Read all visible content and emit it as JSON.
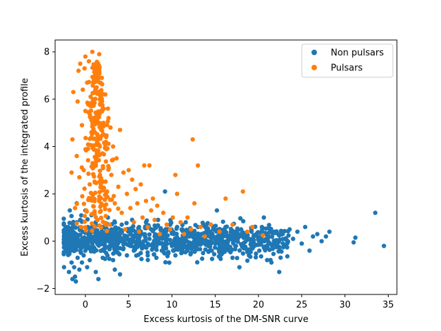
{
  "chart_data": {
    "type": "scatter",
    "title": "",
    "xlabel": "Excess kurtosis of the DM-SNR curve",
    "ylabel": "Excess kurtosis of the integrated profile",
    "xlim": [
      -3.5,
      36.0
    ],
    "ylim": [
      -2.25,
      8.5
    ],
    "xticks": [
      0,
      5,
      10,
      15,
      20,
      25,
      30,
      35
    ],
    "yticks": [
      -2,
      0,
      2,
      4,
      6,
      8
    ],
    "grid": false,
    "legend_position": "upper right",
    "series": [
      {
        "name": "Non pulsars",
        "color": "#1f77b4",
        "points": [
          [
            -2.5,
            0.7
          ],
          [
            -2.4,
            -0.1
          ],
          [
            -2.2,
            0.2
          ],
          [
            -2.0,
            -0.4
          ],
          [
            -2.0,
            0.6
          ],
          [
            -1.9,
            -1.3
          ],
          [
            -1.8,
            1.3
          ],
          [
            -1.6,
            -0.9
          ],
          [
            -1.5,
            -1.6
          ],
          [
            -1.4,
            0.3
          ],
          [
            -1.3,
            -1.1
          ],
          [
            -1.2,
            -1.5
          ],
          [
            -1.1,
            -1.7
          ],
          [
            -1.0,
            1.6
          ],
          [
            -1.0,
            0.8
          ],
          [
            -0.9,
            -0.7
          ],
          [
            -0.8,
            0.0
          ],
          [
            -0.7,
            -1.2
          ],
          [
            -0.6,
            0.9
          ],
          [
            -0.5,
            -0.3
          ],
          [
            -0.4,
            -0.9
          ],
          [
            -0.3,
            0.4
          ],
          [
            -0.2,
            -0.6
          ],
          [
            0.0,
            1.3
          ],
          [
            0.0,
            -0.2
          ],
          [
            0.2,
            -1.1
          ],
          [
            0.3,
            0.5
          ],
          [
            0.5,
            -0.8
          ],
          [
            0.7,
            1.1
          ],
          [
            0.8,
            -0.4
          ],
          [
            1.0,
            0.2
          ],
          [
            1.2,
            -1.3
          ],
          [
            1.4,
            0.9
          ],
          [
            1.5,
            -1.6
          ],
          [
            1.7,
            -0.1
          ],
          [
            1.9,
            0.6
          ],
          [
            2.0,
            -0.7
          ],
          [
            2.2,
            0.3
          ],
          [
            2.4,
            -0.5
          ],
          [
            2.6,
            1.0
          ],
          [
            2.8,
            -0.2
          ],
          [
            3.0,
            0.5
          ],
          [
            3.2,
            -0.8
          ],
          [
            3.4,
            -1.2
          ],
          [
            3.6,
            0.2
          ],
          [
            3.8,
            -0.5
          ],
          [
            4.0,
            -1.4
          ],
          [
            4.2,
            0.7
          ],
          [
            4.4,
            -0.3
          ],
          [
            4.6,
            0.1
          ],
          [
            4.8,
            -0.6
          ],
          [
            5.0,
            0.4
          ],
          [
            5.2,
            -0.2
          ],
          [
            5.4,
            0.9
          ],
          [
            5.6,
            -0.4
          ],
          [
            5.8,
            0.2
          ],
          [
            6.0,
            -0.1
          ],
          [
            6.2,
            0.6
          ],
          [
            6.4,
            -0.5
          ],
          [
            6.6,
            0.3
          ],
          [
            6.8,
            -0.2
          ],
          [
            7.0,
            0.8
          ],
          [
            7.2,
            -0.6
          ],
          [
            7.4,
            0.1
          ],
          [
            7.6,
            0.5
          ],
          [
            7.8,
            -0.3
          ],
          [
            8.0,
            0.2
          ],
          [
            8.2,
            -0.7
          ],
          [
            8.4,
            0.9
          ],
          [
            8.6,
            -0.1
          ],
          [
            8.8,
            0.4
          ],
          [
            9.0,
            -0.4
          ],
          [
            9.2,
            2.1
          ],
          [
            9.4,
            0.1
          ],
          [
            9.6,
            -0.5
          ],
          [
            9.8,
            0.7
          ],
          [
            10.0,
            -0.2
          ],
          [
            10.2,
            0.3
          ],
          [
            10.4,
            -0.6
          ],
          [
            10.6,
            0.6
          ],
          [
            10.8,
            0.0
          ],
          [
            11.0,
            -0.3
          ],
          [
            11.2,
            0.5
          ],
          [
            11.4,
            -0.1
          ],
          [
            11.6,
            0.8
          ],
          [
            11.8,
            -0.4
          ],
          [
            12.0,
            0.2
          ],
          [
            12.2,
            -0.5
          ],
          [
            12.4,
            0.4
          ],
          [
            12.6,
            0.0
          ],
          [
            12.8,
            -0.3
          ],
          [
            13.0,
            0.6
          ],
          [
            13.2,
            -0.1
          ],
          [
            13.4,
            0.3
          ],
          [
            13.6,
            -0.5
          ],
          [
            13.8,
            0.1
          ],
          [
            14.0,
            0.7
          ],
          [
            14.2,
            -0.2
          ],
          [
            14.4,
            0.4
          ],
          [
            14.6,
            -0.4
          ],
          [
            14.8,
            0.2
          ],
          [
            15.0,
            -0.1
          ],
          [
            15.2,
            1.3
          ],
          [
            15.4,
            0.5
          ],
          [
            15.6,
            -0.6
          ],
          [
            15.8,
            0.3
          ],
          [
            16.0,
            -0.2
          ],
          [
            16.2,
            0.6
          ],
          [
            16.4,
            0.0
          ],
          [
            16.6,
            -0.4
          ],
          [
            16.8,
            0.2
          ],
          [
            17.0,
            -0.7
          ],
          [
            17.2,
            0.4
          ],
          [
            17.4,
            -0.2
          ],
          [
            17.6,
            0.1
          ],
          [
            17.8,
            -1.1
          ],
          [
            18.0,
            0.5
          ],
          [
            18.3,
            -0.3
          ],
          [
            18.6,
            0.2
          ],
          [
            18.9,
            -0.6
          ],
          [
            19.2,
            0.4
          ],
          [
            19.5,
            -0.1
          ],
          [
            19.8,
            0.3
          ],
          [
            20.1,
            -0.4
          ],
          [
            20.4,
            0.6
          ],
          [
            20.7,
            0.0
          ],
          [
            21.0,
            -0.8
          ],
          [
            21.2,
            0.2
          ],
          [
            21.5,
            -0.9
          ],
          [
            21.8,
            0.4
          ],
          [
            22.1,
            0.0
          ],
          [
            22.4,
            -1.3
          ],
          [
            22.8,
            0.3
          ],
          [
            23.2,
            -0.2
          ],
          [
            23.6,
            0.5
          ],
          [
            24.0,
            0.1
          ],
          [
            24.5,
            0.4
          ],
          [
            25.0,
            -0.1
          ],
          [
            25.4,
            0.6
          ],
          [
            25.9,
            -0.4
          ],
          [
            26.3,
            0.2
          ],
          [
            26.8,
            0.3
          ],
          [
            27.3,
            0.0
          ],
          [
            27.8,
            0.2
          ],
          [
            28.2,
            0.4
          ],
          [
            31.0,
            -0.05
          ],
          [
            31.2,
            0.15
          ],
          [
            33.5,
            1.2
          ],
          [
            34.5,
            -0.2
          ]
        ]
      },
      {
        "name": "Pulsars",
        "color": "#ff7f0e",
        "points": [
          [
            -1.6,
            2.9
          ],
          [
            -1.5,
            4.3
          ],
          [
            -1.4,
            6.3
          ],
          [
            -1.2,
            1.4
          ],
          [
            -1.0,
            3.6
          ],
          [
            -0.9,
            5.9
          ],
          [
            -0.8,
            7.2
          ],
          [
            -0.7,
            2.7
          ],
          [
            -0.6,
            7.5
          ],
          [
            -0.5,
            0.6
          ],
          [
            -0.4,
            4.9
          ],
          [
            -0.3,
            6.4
          ],
          [
            -0.2,
            3.0
          ],
          [
            -0.1,
            7.3
          ],
          [
            0.0,
            7.8
          ],
          [
            0.0,
            5.5
          ],
          [
            0.1,
            1.3
          ],
          [
            0.2,
            6.7
          ],
          [
            0.3,
            3.9
          ],
          [
            0.4,
            7.6
          ],
          [
            0.5,
            2.4
          ],
          [
            0.6,
            6.1
          ],
          [
            0.7,
            4.6
          ],
          [
            0.8,
            8.0
          ],
          [
            0.9,
            1.8
          ],
          [
            1.0,
            5.2
          ],
          [
            1.1,
            7.0
          ],
          [
            1.2,
            3.3
          ],
          [
            1.3,
            6.5
          ],
          [
            1.4,
            0.9
          ],
          [
            1.5,
            4.1
          ],
          [
            1.6,
            7.9
          ],
          [
            1.7,
            5.8
          ],
          [
            1.8,
            2.6
          ],
          [
            1.9,
            6.9
          ],
          [
            2.0,
            3.7
          ],
          [
            2.1,
            5.0
          ],
          [
            2.2,
            1.5
          ],
          [
            2.3,
            6.2
          ],
          [
            2.4,
            4.4
          ],
          [
            2.5,
            2.1
          ],
          [
            2.6,
            5.6
          ],
          [
            2.7,
            3.1
          ],
          [
            2.8,
            0.7
          ],
          [
            2.9,
            4.8
          ],
          [
            3.0,
            2.8
          ],
          [
            3.2,
            4.0
          ],
          [
            3.4,
            1.6
          ],
          [
            3.6,
            3.5
          ],
          [
            3.8,
            2.3
          ],
          [
            4.0,
            4.7
          ],
          [
            4.2,
            1.2
          ],
          [
            4.4,
            2.9
          ],
          [
            4.6,
            0.5
          ],
          [
            4.8,
            2.0
          ],
          [
            5.0,
            3.0
          ],
          [
            5.2,
            1.4
          ],
          [
            5.4,
            2.6
          ],
          [
            5.6,
            0.8
          ],
          [
            5.8,
            2.2
          ],
          [
            6.0,
            1.6
          ],
          [
            6.2,
            0.4
          ],
          [
            6.4,
            2.4
          ],
          [
            6.6,
            1.0
          ],
          [
            6.8,
            3.2
          ],
          [
            7.0,
            1.7
          ],
          [
            7.2,
            0.6
          ],
          [
            7.4,
            3.2
          ],
          [
            7.6,
            1.3
          ],
          [
            7.8,
            1.8
          ],
          [
            8.0,
            0.9
          ],
          [
            8.3,
            1.5
          ],
          [
            8.6,
            0.3
          ],
          [
            9.0,
            1.2
          ],
          [
            9.4,
            0.7
          ],
          [
            9.8,
            0.5
          ],
          [
            10.1,
            1.0
          ],
          [
            10.4,
            2.8
          ],
          [
            10.6,
            2.0
          ],
          [
            11.0,
            0.8
          ],
          [
            11.4,
            0.3
          ],
          [
            11.8,
            1.0
          ],
          [
            12.2,
            0.5
          ],
          [
            12.4,
            4.3
          ],
          [
            12.6,
            1.6
          ],
          [
            13.0,
            3.2
          ],
          [
            13.3,
            0.6
          ],
          [
            13.8,
            0.2
          ],
          [
            14.5,
            0.7
          ],
          [
            15.5,
            0.4
          ],
          [
            16.2,
            1.8
          ],
          [
            17.0,
            0.7
          ],
          [
            18.2,
            2.1
          ],
          [
            18.7,
            0.4
          ],
          [
            19.3,
            0.6
          ],
          [
            20.5,
            0.25
          ]
        ]
      }
    ]
  }
}
